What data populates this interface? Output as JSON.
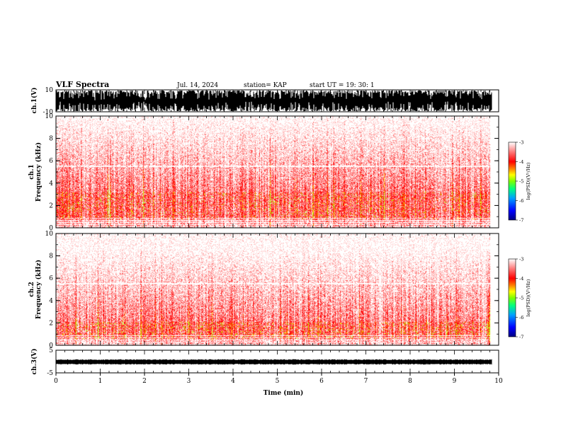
{
  "header": {
    "title": "VLF Spectra",
    "date": "Jul. 14, 2024",
    "station": "station= KAP",
    "start": "start UT =  19: 30: 1"
  },
  "chart_data": [
    {
      "type": "area",
      "name": "ch1-waveform",
      "ylabel": "ch.1(V)",
      "ylim": [
        -10,
        10
      ],
      "yticks": [
        {
          "v": 10,
          "label": "10"
        },
        {
          "v": -10,
          "label": "-10"
        }
      ]
    },
    {
      "type": "heatmap",
      "name": "ch1-spectrogram",
      "ylabel": "ch.1\nFrequency (kHz)",
      "ylabel_line1": "ch.1",
      "ylabel_line2": "Frequency (kHz)",
      "ylim": [
        0,
        10
      ],
      "yticks": [
        {
          "v": 0,
          "label": "0"
        },
        {
          "v": 2,
          "label": "2"
        },
        {
          "v": 4,
          "label": "4"
        },
        {
          "v": 6,
          "label": "6"
        },
        {
          "v": 8,
          "label": "8"
        },
        {
          "v": 10,
          "label": "10"
        }
      ],
      "intense_band_khz": [
        0.8,
        3.2
      ],
      "colorbar": {
        "label": "log(PSD)(V²/Hz)",
        "range": [
          -7,
          -3
        ],
        "ticks": [
          {
            "v": -3,
            "label": "-3"
          },
          {
            "v": -4,
            "label": "-4"
          },
          {
            "v": -5,
            "label": "-5"
          },
          {
            "v": -6,
            "label": "-6"
          },
          {
            "v": -7,
            "label": "-7"
          }
        ],
        "colors": [
          "#000080",
          "#0000ff",
          "#00a0ff",
          "#00ff80",
          "#80ff00",
          "#ffff00",
          "#ff8000",
          "#ff0000",
          "#ff8080",
          "#ffffff"
        ]
      }
    },
    {
      "type": "heatmap",
      "name": "ch2-spectrogram",
      "ylabel": "ch.2\nFrequency (kHz)",
      "ylabel_line1": "ch.2",
      "ylabel_line2": "Frequency (kHz)",
      "ylim": [
        0,
        10
      ],
      "yticks": [
        {
          "v": 0,
          "label": "0"
        },
        {
          "v": 2,
          "label": "2"
        },
        {
          "v": 4,
          "label": "4"
        },
        {
          "v": 6,
          "label": "6"
        },
        {
          "v": 8,
          "label": "8"
        },
        {
          "v": 10,
          "label": "10"
        }
      ],
      "intense_band_khz": [
        0.6,
        2.1
      ],
      "colorbar": {
        "label": "log(PSD)(V²/Hz)",
        "range": [
          -7,
          -3
        ],
        "ticks": [
          {
            "v": -3,
            "label": "-3"
          },
          {
            "v": -4,
            "label": "-4"
          },
          {
            "v": -5,
            "label": "-5"
          },
          {
            "v": -6,
            "label": "-6"
          },
          {
            "v": -7,
            "label": "-7"
          }
        ],
        "colors": [
          "#000080",
          "#0000ff",
          "#00a0ff",
          "#00ff80",
          "#80ff00",
          "#ffff00",
          "#ff8000",
          "#ff0000",
          "#ff8080",
          "#ffffff"
        ]
      }
    },
    {
      "type": "area",
      "name": "ch3-waveform",
      "ylabel": "ch.3(V)",
      "ylim": [
        -5,
        5
      ],
      "yticks": [
        {
          "v": 5,
          "label": "5"
        },
        {
          "v": -5,
          "label": "-5"
        }
      ]
    }
  ],
  "x_axis": {
    "label": "Time (min)",
    "range": [
      0,
      10
    ],
    "data_end": 9.85,
    "ticks": [
      {
        "v": 0,
        "label": "0"
      },
      {
        "v": 1,
        "label": "1"
      },
      {
        "v": 2,
        "label": "2"
      },
      {
        "v": 3,
        "label": "3"
      },
      {
        "v": 4,
        "label": "4"
      },
      {
        "v": 5,
        "label": "5"
      },
      {
        "v": 6,
        "label": "6"
      },
      {
        "v": 7,
        "label": "7"
      },
      {
        "v": 8,
        "label": "8"
      },
      {
        "v": 9,
        "label": "9"
      },
      {
        "v": 10,
        "label": "10"
      }
    ]
  }
}
